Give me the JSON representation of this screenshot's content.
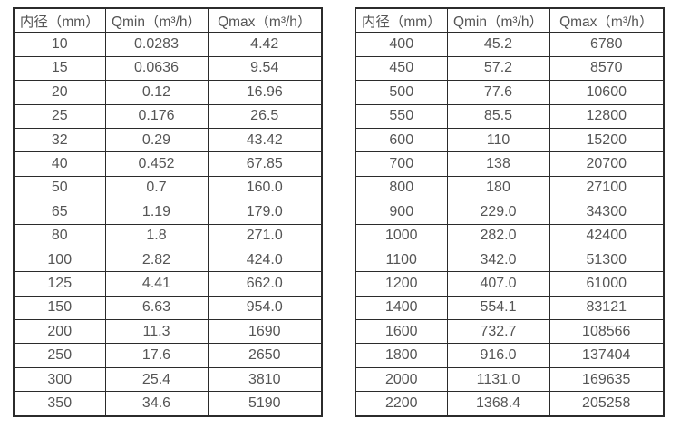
{
  "page": {
    "background": "#ffffff",
    "border_color": "#2b2b2b",
    "text_color": "#555555"
  },
  "tables": [
    {
      "name": "flow-spec-table-small-diameters",
      "headers": [
        "内径（mm）",
        "Qmin（m³/h）",
        "Qmax（m³/h）"
      ],
      "rows": [
        [
          "10",
          "0.0283",
          "4.42"
        ],
        [
          "15",
          "0.0636",
          "9.54"
        ],
        [
          "20",
          "0.12",
          "16.96"
        ],
        [
          "25",
          "0.176",
          "26.5"
        ],
        [
          "32",
          "0.29",
          "43.42"
        ],
        [
          "40",
          "0.452",
          "67.85"
        ],
        [
          "50",
          "0.7",
          "160.0"
        ],
        [
          "65",
          "1.19",
          "179.0"
        ],
        [
          "80",
          "1.8",
          "271.0"
        ],
        [
          "100",
          "2.82",
          "424.0"
        ],
        [
          "125",
          "4.41",
          "662.0"
        ],
        [
          "150",
          "6.63",
          "954.0"
        ],
        [
          "200",
          "11.3",
          "1690"
        ],
        [
          "250",
          "17.6",
          "2650"
        ],
        [
          "300",
          "25.4",
          "3810"
        ],
        [
          "350",
          "34.6",
          "5190"
        ]
      ]
    },
    {
      "name": "flow-spec-table-large-diameters",
      "headers": [
        "内径（mm）",
        "Qmin（m³/h）",
        "Qmax（m³/h）"
      ],
      "rows": [
        [
          "400",
          "45.2",
          "6780"
        ],
        [
          "450",
          "57.2",
          "8570"
        ],
        [
          "500",
          "77.6",
          "10600"
        ],
        [
          "550",
          "85.5",
          "12800"
        ],
        [
          "600",
          "110",
          "15200"
        ],
        [
          "700",
          "138",
          "20700"
        ],
        [
          "800",
          "180",
          "27100"
        ],
        [
          "900",
          "229.0",
          "34300"
        ],
        [
          "1000",
          "282.0",
          "42400"
        ],
        [
          "1100",
          "342.0",
          "51300"
        ],
        [
          "1200",
          "407.0",
          "61000"
        ],
        [
          "1400",
          "554.1",
          "83121"
        ],
        [
          "1600",
          "732.7",
          "108566"
        ],
        [
          "1800",
          "916.0",
          "137404"
        ],
        [
          "2000",
          "1131.0",
          "169635"
        ],
        [
          "2200",
          "1368.4",
          "205258"
        ]
      ]
    }
  ]
}
